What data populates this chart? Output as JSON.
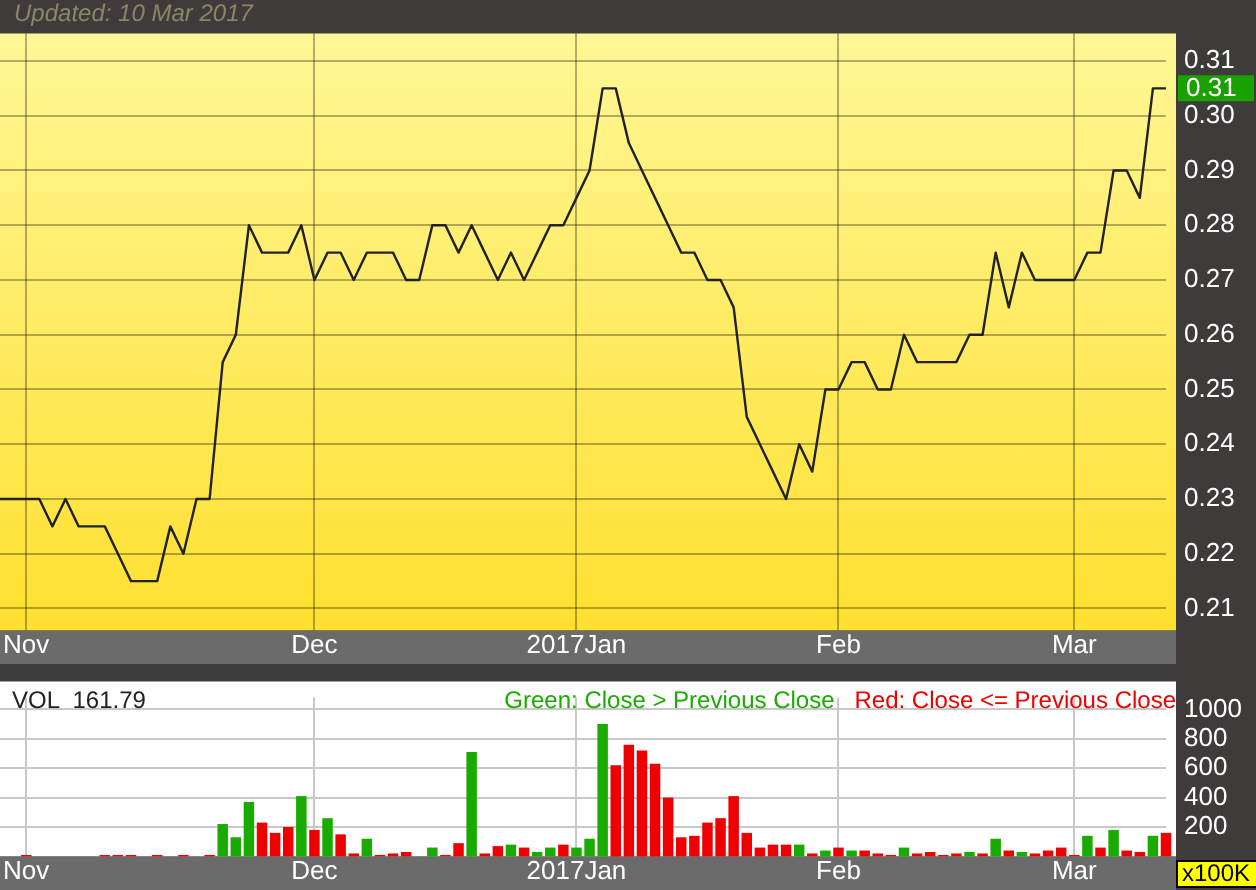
{
  "chart_data": [
    {
      "type": "line",
      "annotations": [
        "Updated: 10 Mar 2017",
        "0.31"
      ],
      "categories": [
        null,
        null,
        "Nov",
        null,
        null,
        null,
        null,
        null,
        null,
        null,
        null,
        null,
        null,
        null,
        null,
        null,
        null,
        null,
        null,
        null,
        null,
        null,
        null,
        null,
        "Dec",
        null,
        null,
        null,
        null,
        null,
        null,
        null,
        null,
        null,
        null,
        null,
        null,
        null,
        null,
        null,
        null,
        null,
        null,
        null,
        "2017Jan",
        null,
        null,
        null,
        null,
        null,
        null,
        null,
        null,
        null,
        null,
        null,
        null,
        null,
        null,
        null,
        null,
        null,
        null,
        null,
        "Feb",
        null,
        null,
        null,
        null,
        null,
        null,
        null,
        null,
        null,
        null,
        null,
        null,
        null,
        null,
        null,
        null,
        null,
        "Mar",
        null,
        null,
        null,
        null,
        null,
        null,
        null
      ],
      "series": [
        {
          "color": "#222222",
          "values": [
            0.23,
            0.23,
            0.23,
            0.23,
            0.225,
            0.23,
            0.225,
            0.225,
            0.225,
            0.22,
            0.215,
            0.215,
            0.215,
            0.225,
            0.22,
            0.23,
            0.23,
            0.255,
            0.26,
            0.28,
            0.275,
            0.275,
            0.275,
            0.28,
            0.27,
            0.275,
            0.275,
            0.27,
            0.275,
            0.275,
            0.275,
            0.27,
            0.27,
            0.28,
            0.28,
            0.275,
            0.28,
            0.275,
            0.27,
            0.275,
            0.27,
            0.275,
            0.28,
            0.28,
            0.285,
            0.29,
            0.305,
            0.305,
            0.295,
            0.29,
            0.285,
            0.28,
            0.275,
            0.275,
            0.27,
            0.27,
            0.265,
            0.245,
            0.24,
            0.235,
            0.23,
            0.24,
            0.235,
            0.25,
            0.25,
            0.255,
            0.255,
            0.25,
            0.25,
            0.26,
            0.255,
            0.255,
            0.255,
            0.255,
            0.26,
            0.26,
            0.275,
            0.265,
            0.275,
            0.27,
            0.27,
            0.27,
            0.27,
            0.275,
            0.275,
            0.29,
            0.29,
            0.285,
            0.305,
            0.305
          ]
        }
      ],
      "ylim": [
        0.206,
        0.315
      ],
      "yticks": [
        0.21,
        0.22,
        0.23,
        0.24,
        0.25,
        0.26,
        0.27,
        0.28,
        0.29,
        {
          "value": 0.3,
          "label": "0.30"
        },
        0.31
      ],
      "grid": true
    },
    {
      "type": "bar",
      "stacked": true,
      "legend": "top right",
      "annotations": [
        "VOL  161.79",
        "x100K"
      ],
      "categories": [
        null,
        null,
        "Nov",
        null,
        null,
        null,
        null,
        null,
        null,
        null,
        null,
        null,
        null,
        null,
        null,
        null,
        null,
        null,
        null,
        null,
        null,
        null,
        null,
        null,
        "Dec",
        null,
        null,
        null,
        null,
        null,
        null,
        null,
        null,
        null,
        null,
        null,
        null,
        null,
        null,
        null,
        null,
        null,
        null,
        null,
        "2017Jan",
        null,
        null,
        null,
        null,
        null,
        null,
        null,
        null,
        null,
        null,
        null,
        null,
        null,
        null,
        null,
        null,
        null,
        null,
        null,
        "Feb",
        null,
        null,
        null,
        null,
        null,
        null,
        null,
        null,
        null,
        null,
        null,
        null,
        null,
        null,
        null,
        null,
        null,
        "Mar",
        null,
        null,
        null,
        null,
        null,
        null,
        null
      ],
      "series": [
        {
          "name": "Green: Close > Previous Close",
          "color": "#1aab00",
          "values": [
            null,
            null,
            null,
            null,
            null,
            null,
            null,
            null,
            null,
            null,
            null,
            null,
            null,
            null,
            null,
            null,
            null,
            220,
            130,
            370,
            null,
            null,
            null,
            410,
            null,
            260,
            null,
            null,
            120,
            null,
            null,
            null,
            null,
            60,
            null,
            null,
            710,
            null,
            null,
            80,
            null,
            30,
            60,
            null,
            60,
            120,
            900,
            null,
            null,
            null,
            null,
            null,
            null,
            null,
            null,
            null,
            null,
            null,
            null,
            null,
            null,
            80,
            null,
            40,
            null,
            40,
            null,
            null,
            null,
            60,
            null,
            null,
            null,
            null,
            30,
            null,
            120,
            null,
            30,
            null,
            null,
            null,
            null,
            140,
            null,
            180,
            null,
            null,
            140,
            null
          ]
        },
        {
          "name": "Red: Close <= Previous Close",
          "color": "#ee0000",
          "values": [
            null,
            null,
            10,
            null,
            null,
            null,
            null,
            null,
            10,
            10,
            10,
            null,
            10,
            null,
            10,
            null,
            10,
            null,
            null,
            null,
            230,
            160,
            200,
            null,
            180,
            null,
            150,
            20,
            null,
            10,
            20,
            30,
            null,
            null,
            10,
            90,
            null,
            20,
            70,
            null,
            60,
            null,
            null,
            80,
            null,
            null,
            null,
            620,
            760,
            720,
            630,
            400,
            130,
            140,
            230,
            260,
            410,
            160,
            60,
            80,
            80,
            null,
            20,
            null,
            60,
            null,
            40,
            20,
            10,
            null,
            20,
            30,
            10,
            20,
            null,
            20,
            null,
            40,
            null,
            20,
            40,
            60,
            10,
            null,
            60,
            null,
            40,
            30,
            null,
            160
          ]
        }
      ],
      "ylim": [
        0,
        1080
      ],
      "yticks": [
        200,
        400,
        600,
        800,
        1000
      ],
      "grid": true
    }
  ]
}
